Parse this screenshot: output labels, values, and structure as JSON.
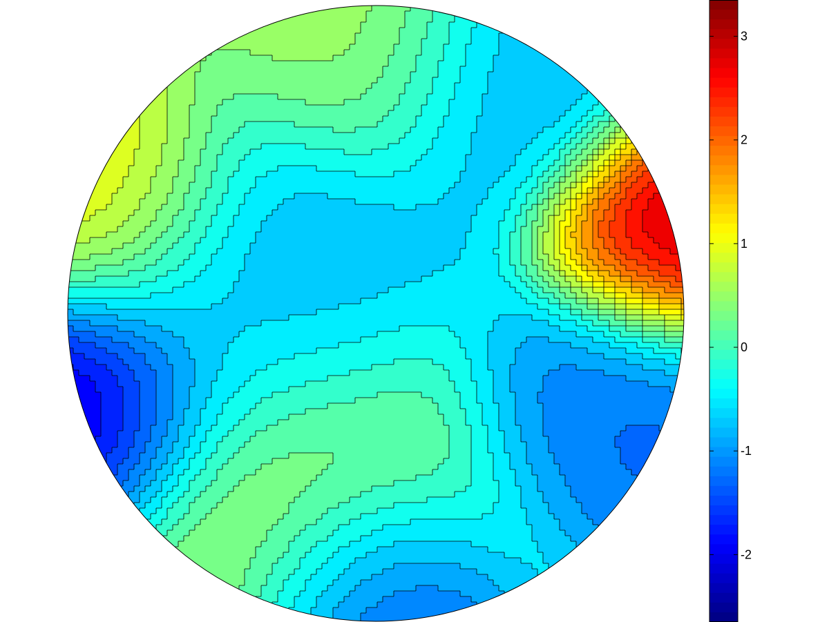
{
  "chart_data": {
    "type": "contour",
    "colormap": "jet",
    "grid": false,
    "clim": [
      -2.65,
      3.35
    ],
    "colorbar": {
      "position": "right",
      "ticks": [
        3,
        2,
        1,
        0,
        -1,
        -2
      ],
      "tick_labels": [
        "3",
        "2",
        "1",
        "0",
        "-1",
        "-2"
      ]
    },
    "contour_levels": [
      -2.6,
      -2.4,
      -2.2,
      -2.0,
      -1.8,
      -1.6,
      -1.4,
      -1.2,
      -1.0,
      -0.8,
      -0.6,
      -0.4,
      -0.2,
      0.0,
      0.2,
      0.4,
      0.6,
      0.8,
      1.0,
      1.2,
      1.4,
      1.6,
      1.8,
      2.0,
      2.2,
      2.4,
      2.6,
      2.8,
      3.0,
      3.2
    ],
    "features": [
      {
        "kind": "maximum",
        "value": 3.2
      },
      {
        "kind": "maximum",
        "value": 1.3
      },
      {
        "kind": "maximum",
        "value": 0.8
      },
      {
        "kind": "maximum",
        "value": 0.6
      },
      {
        "kind": "minimum",
        "value": -2.6
      },
      {
        "kind": "minimum",
        "value": -2.2
      },
      {
        "kind": "minimum",
        "value": -1.3
      },
      {
        "kind": "minimum",
        "value": -1.0
      },
      {
        "kind": "minimum",
        "value": -0.9
      }
    ]
  }
}
